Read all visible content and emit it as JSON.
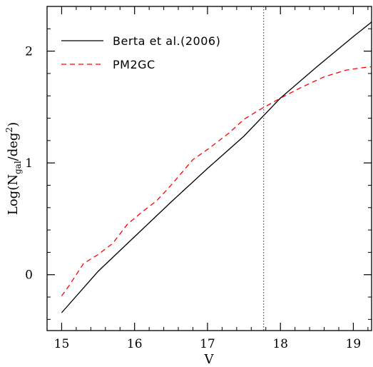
{
  "chart_data": {
    "type": "line",
    "xlabel": "V",
    "ylabel": "Log(N",
    "ylabel_sub": "gal",
    "ylabel_tail": "/deg",
    "ylabel_sup": "2",
    "ylabel_close": ")",
    "xlim": [
      14.8,
      19.25
    ],
    "ylim": [
      -0.5,
      2.4
    ],
    "xticks": [
      15,
      16,
      17,
      18,
      19
    ],
    "xtick_labels": [
      "15",
      "16",
      "17",
      "18",
      "19"
    ],
    "yticks": [
      0,
      1,
      2
    ],
    "ytick_labels": [
      "0",
      "1",
      "2"
    ],
    "x_minor_step": 0.2,
    "y_minor_step": 0.2,
    "legend_placement": "top-left",
    "vline": {
      "x": 17.77,
      "style": "dotted",
      "color": "#555555"
    },
    "series": [
      {
        "name": "Berta et al.(2006)",
        "color": "#000000",
        "dash": "solid",
        "x": [
          15.0,
          15.5,
          16.0,
          16.5,
          17.0,
          17.5,
          18.0,
          18.5,
          19.0,
          19.25
        ],
        "y": [
          -0.34,
          0.03,
          0.34,
          0.65,
          0.95,
          1.24,
          1.58,
          1.86,
          2.13,
          2.26
        ]
      },
      {
        "name": "PM2GC",
        "color": "#ff0000",
        "dash": "dashed",
        "x": [
          15.0,
          15.1,
          15.3,
          15.5,
          15.7,
          15.9,
          16.1,
          16.3,
          16.5,
          16.8,
          17.0,
          17.3,
          17.5,
          17.7,
          18.0,
          18.3,
          18.6,
          18.9,
          19.1,
          19.25
        ],
        "y": [
          -0.19,
          -0.1,
          0.1,
          0.18,
          0.28,
          0.45,
          0.56,
          0.66,
          0.8,
          1.03,
          1.12,
          1.27,
          1.39,
          1.47,
          1.58,
          1.68,
          1.77,
          1.83,
          1.85,
          1.86
        ]
      }
    ]
  }
}
